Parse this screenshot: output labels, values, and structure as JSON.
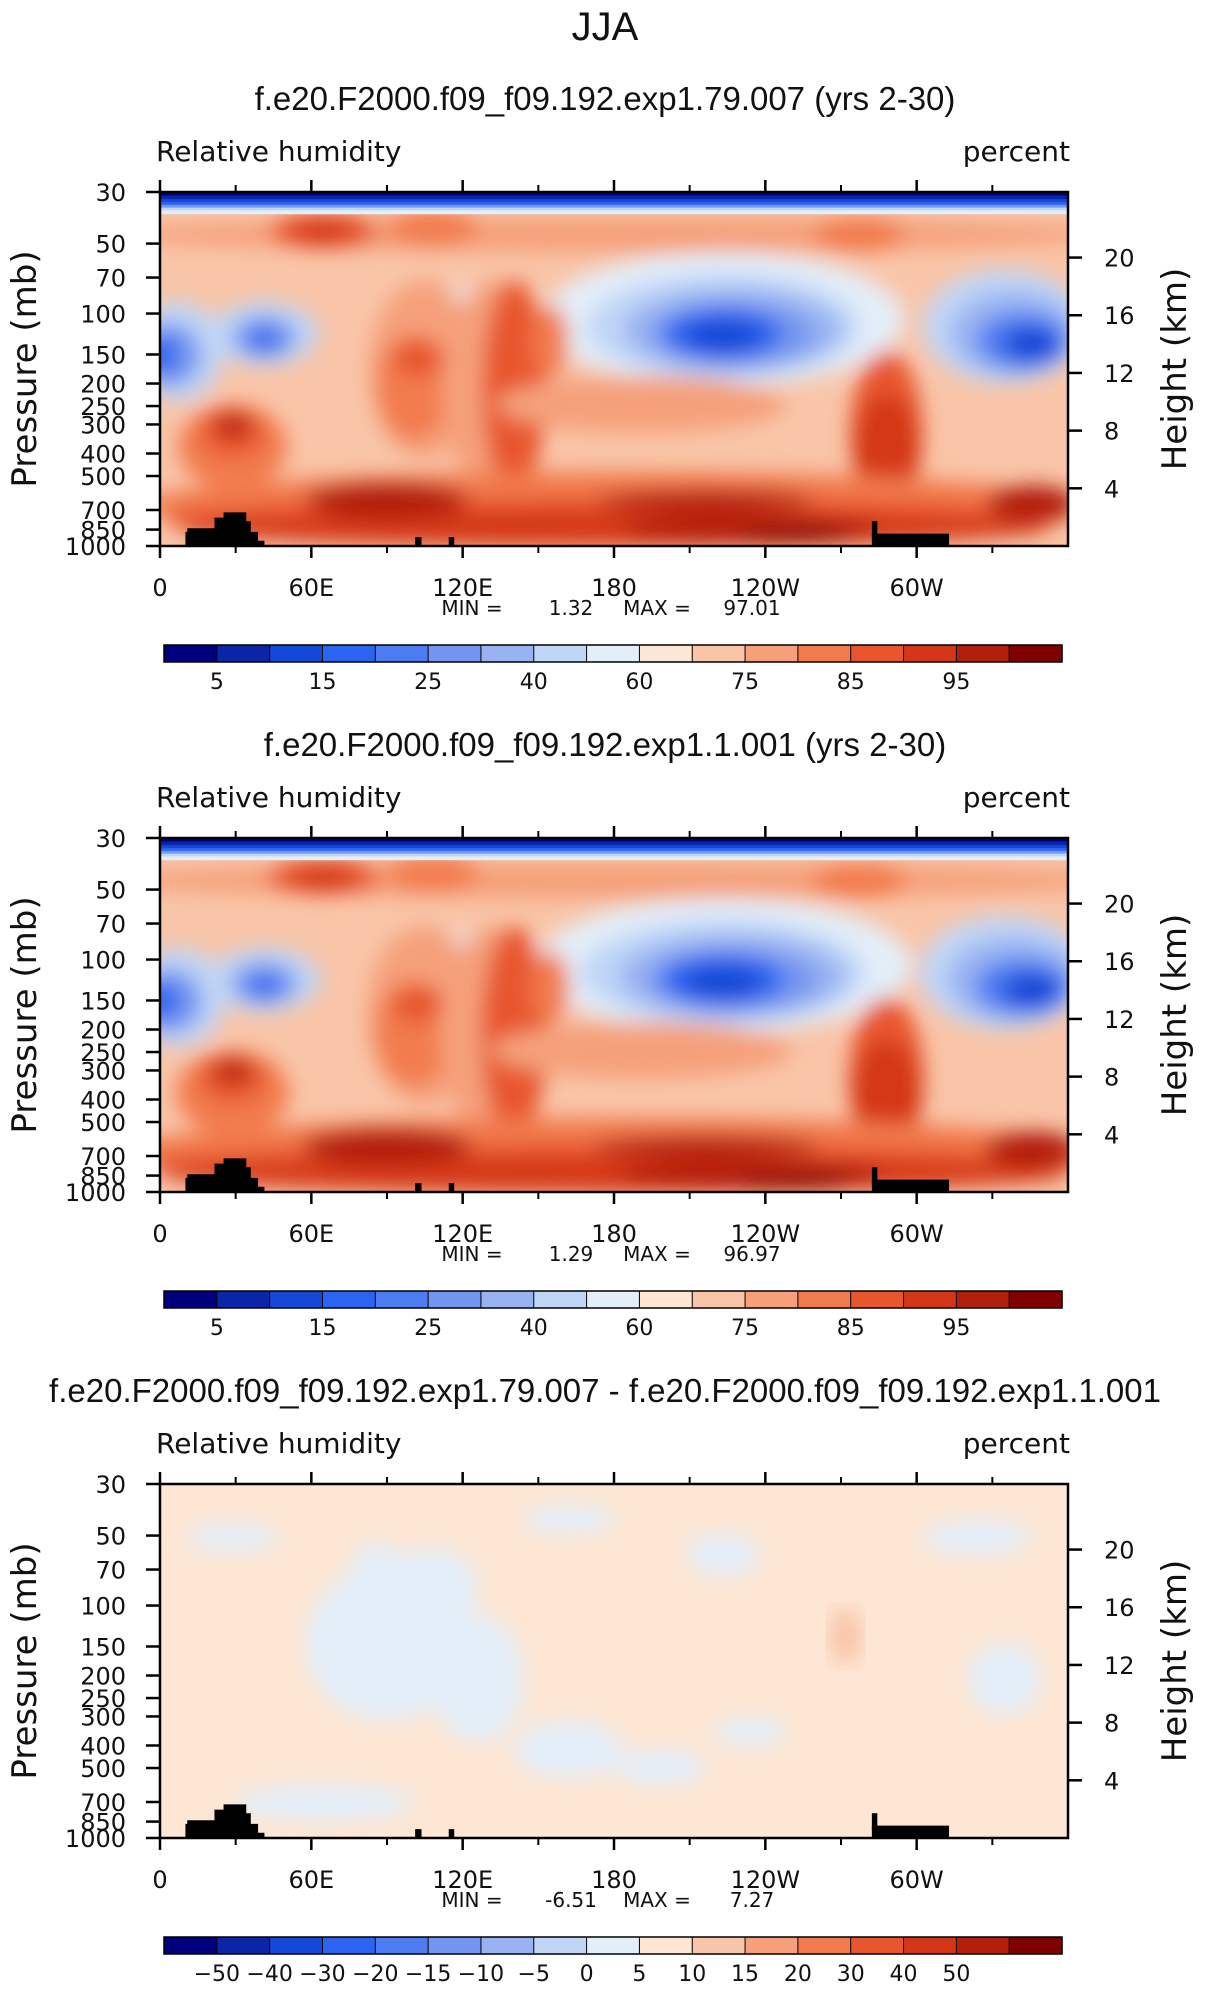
{
  "page_title": "JJA",
  "chart_data": [
    {
      "type": "heatmap",
      "title": "f.e20.F2000.f09_f09.192.exp1.79.007 (yrs 2-30)",
      "left_label": "Relative humidity",
      "right_label": "percent",
      "ylabel": "Pressure (mb)",
      "y2label": "Height (km)",
      "x_ticks": [
        "0",
        "60E",
        "120E",
        "180",
        "120W",
        "60W"
      ],
      "y_ticks": [
        "30",
        "50",
        "70",
        "100",
        "150",
        "200",
        "250",
        "300",
        "400",
        "500",
        "700",
        "850",
        "1000"
      ],
      "y2_ticks": [
        "20",
        "16",
        "12",
        "8",
        "4"
      ],
      "stats": {
        "min_label": "MIN =",
        "min": "1.32",
        "max_label": "MAX =",
        "max": "97.01"
      },
      "colorbar_labels": [
        "5",
        "15",
        "25",
        "40",
        "60",
        "75",
        "85",
        "95"
      ],
      "field": "rh"
    },
    {
      "type": "heatmap",
      "title": "f.e20.F2000.f09_f09.192.exp1.1.001 (yrs 2-30)",
      "left_label": "Relative humidity",
      "right_label": "percent",
      "ylabel": "Pressure (mb)",
      "y2label": "Height (km)",
      "x_ticks": [
        "0",
        "60E",
        "120E",
        "180",
        "120W",
        "60W"
      ],
      "y_ticks": [
        "30",
        "50",
        "70",
        "100",
        "150",
        "200",
        "250",
        "300",
        "400",
        "500",
        "700",
        "850",
        "1000"
      ],
      "y2_ticks": [
        "20",
        "16",
        "12",
        "8",
        "4"
      ],
      "stats": {
        "min_label": "MIN =",
        "min": "1.29",
        "max_label": "MAX =",
        "max": "96.97"
      },
      "colorbar_labels": [
        "5",
        "15",
        "25",
        "40",
        "60",
        "75",
        "85",
        "95"
      ],
      "field": "rh"
    },
    {
      "type": "heatmap",
      "title": "f.e20.F2000.f09_f09.192.exp1.79.007 - f.e20.F2000.f09_f09.192.exp1.1.001",
      "left_label": "Relative humidity",
      "right_label": "percent",
      "ylabel": "Pressure (mb)",
      "y2label": "Height (km)",
      "x_ticks": [
        "0",
        "60E",
        "120E",
        "180",
        "120W",
        "60W"
      ],
      "y_ticks": [
        "30",
        "50",
        "70",
        "100",
        "150",
        "200",
        "250",
        "300",
        "400",
        "500",
        "700",
        "850",
        "1000"
      ],
      "y2_ticks": [
        "20",
        "16",
        "12",
        "8",
        "4"
      ],
      "stats": {
        "min_label": "MIN =",
        "min": "-6.51",
        "max_label": "MAX =",
        "max": "7.27"
      },
      "colorbar_labels": [
        "−50",
        "−40",
        "−30",
        "−20",
        "−15",
        "−10",
        "−5",
        "0",
        "5",
        "10",
        "15",
        "20",
        "30",
        "40",
        "50"
      ],
      "field": "diff"
    }
  ],
  "colors": {
    "colormap": [
      "#00007f",
      "#0b25a8",
      "#1448d6",
      "#2a64f0",
      "#4d7cf2",
      "#7495ef",
      "#99b3f2",
      "#c0d6f7",
      "#e3eef9",
      "#fde6d3",
      "#f9c5a8",
      "#f5a07a",
      "#f27b4e",
      "#e8562e",
      "#d43717",
      "#b21f0d",
      "#800000"
    ],
    "land": "#000000"
  }
}
